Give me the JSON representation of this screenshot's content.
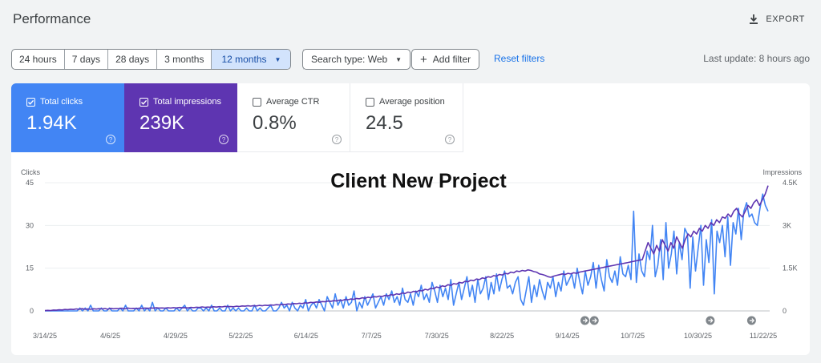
{
  "header": {
    "title": "Performance",
    "export_label": "EXPORT",
    "export_icon": "download-icon"
  },
  "toolbar": {
    "ranges": [
      "24 hours",
      "7 days",
      "28 days",
      "3 months",
      "12 months"
    ],
    "active_range": "12 months",
    "search_type": "Search type: Web",
    "add_filter": "Add filter",
    "reset_filters": "Reset filters",
    "last_update": "Last update: 8 hours ago"
  },
  "metrics": [
    {
      "label": "Total clicks",
      "value": "1.94K",
      "checked": true,
      "color": "#4285f4"
    },
    {
      "label": "Total impressions",
      "value": "239K",
      "checked": true,
      "color": "#5e35b1"
    },
    {
      "label": "Average CTR",
      "value": "0.8%",
      "checked": false
    },
    {
      "label": "Average position",
      "value": "24.5",
      "checked": false
    }
  ],
  "overlay_text": "Client New Project",
  "chart_data": {
    "type": "line",
    "title": "",
    "left_axis": {
      "label": "Clicks",
      "ticks": [
        "45",
        "30",
        "15",
        "0"
      ],
      "range": [
        0,
        45
      ]
    },
    "right_axis": {
      "label": "Impressions",
      "ticks": [
        "4.5K",
        "3K",
        "1.5K",
        "0"
      ],
      "range": [
        0,
        4500
      ]
    },
    "x_tick_labels": [
      "3/14/25",
      "4/6/25",
      "4/29/25",
      "5/22/25",
      "6/14/25",
      "7/7/25",
      "7/30/25",
      "8/22/25",
      "9/14/25",
      "10/7/25",
      "10/30/25",
      "11/22/25"
    ],
    "series": [
      {
        "name": "Clicks",
        "axis": "left",
        "color": "#4285f4",
        "values": [
          0,
          0,
          0,
          0,
          0,
          0,
          0,
          0,
          0,
          0,
          0,
          0,
          0,
          1,
          0,
          1,
          0,
          2,
          0,
          0,
          0,
          1,
          0,
          0,
          1,
          0,
          0,
          0,
          1,
          0,
          2,
          0,
          0,
          0,
          1,
          0,
          2,
          0,
          1,
          0,
          3,
          0,
          1,
          0,
          0,
          1,
          0,
          0,
          0,
          1,
          0,
          1,
          2,
          0,
          1,
          0,
          0,
          1,
          1,
          0,
          1,
          0,
          2,
          0,
          0,
          1,
          0,
          0,
          2,
          0,
          1,
          0,
          1,
          0,
          0,
          1,
          0,
          0,
          2,
          0,
          1,
          0,
          0,
          1,
          2,
          0,
          0,
          1,
          3,
          1,
          2,
          0,
          3,
          1,
          0,
          2,
          1,
          4,
          0,
          2,
          3,
          1,
          4,
          2,
          0,
          5,
          3,
          1,
          6,
          2,
          4,
          1,
          5,
          2,
          3,
          7,
          0,
          3,
          1,
          5,
          2,
          4,
          6,
          1,
          3,
          5,
          2,
          6,
          4,
          7,
          3,
          5,
          2,
          8,
          4,
          3,
          6,
          2,
          7,
          5,
          9,
          4,
          6,
          3,
          10,
          7,
          3,
          9,
          5,
          8,
          4,
          11,
          2,
          6,
          10,
          4,
          8,
          12,
          5,
          9,
          3,
          11,
          6,
          8,
          12,
          4,
          10,
          6,
          13,
          7,
          11,
          14,
          8,
          9,
          6,
          10,
          12,
          4,
          2,
          7,
          12,
          3,
          9,
          5,
          11,
          7,
          4,
          10,
          8,
          12,
          5,
          10,
          7,
          14,
          9,
          11,
          13,
          8,
          15,
          10,
          6,
          14,
          9,
          12,
          17,
          8,
          16,
          11,
          7,
          18,
          12,
          10,
          14,
          9,
          19,
          13,
          12,
          16,
          11,
          35,
          10,
          20,
          14,
          12,
          21,
          18,
          30,
          12,
          16,
          25,
          11,
          31,
          15,
          20,
          28,
          13,
          24,
          18,
          29,
          27,
          8,
          26,
          14,
          22,
          30,
          9,
          25,
          17,
          32,
          6,
          28,
          24,
          30,
          19,
          33,
          16,
          31,
          27,
          36,
          25,
          35,
          38,
          33,
          34,
          31,
          30,
          36,
          41,
          37,
          35
        ]
      },
      {
        "name": "Impressions",
        "axis": "right",
        "color": "#5e35b1",
        "values": [
          10,
          20,
          15,
          30,
          25,
          40,
          35,
          50,
          45,
          60,
          50,
          70,
          55,
          80,
          60,
          70,
          55,
          75,
          65,
          80,
          70,
          85,
          60,
          90,
          75,
          85,
          80,
          95,
          70,
          100,
          85,
          90,
          80,
          95,
          85,
          100,
          90,
          105,
          95,
          110,
          100,
          105,
          95,
          110,
          100,
          115,
          105,
          120,
          110,
          115,
          105,
          125,
          115,
          130,
          120,
          140,
          125,
          135,
          130,
          145,
          135,
          150,
          140,
          160,
          150,
          155,
          145,
          165,
          155,
          175,
          165,
          180,
          170,
          185,
          175,
          195,
          180,
          200,
          190,
          210,
          200,
          220,
          210,
          230,
          220,
          245,
          235,
          260,
          250,
          270,
          260,
          285,
          275,
          300,
          290,
          315,
          305,
          330,
          320,
          345,
          335,
          360,
          350,
          380,
          365,
          400,
          390,
          420,
          405,
          440,
          425,
          460,
          445,
          480,
          465,
          500,
          490,
          520,
          505,
          545,
          530,
          570,
          555,
          600,
          580,
          630,
          610,
          660,
          640,
          690,
          670,
          720,
          700,
          760,
          735,
          800,
          775,
          840,
          815,
          880,
          855,
          920,
          895,
          960,
          940,
          1000,
          980,
          1040,
          1020,
          1080,
          1060,
          1120,
          1100,
          1160,
          1140,
          1200,
          1180,
          1240,
          1220,
          1280,
          1260,
          1320,
          1300,
          1360,
          1340,
          1400,
          1380,
          1420,
          1400,
          1440,
          1420,
          1380,
          1360,
          1300,
          1280,
          1250,
          1200,
          1180,
          1220,
          1250,
          1270,
          1300,
          1280,
          1320,
          1300,
          1340,
          1320,
          1360,
          1380,
          1400,
          1420,
          1440,
          1460,
          1480,
          1500,
          1520,
          1540,
          1560,
          1580,
          1600,
          1620,
          1640,
          1660,
          1680,
          1700,
          1720,
          1740,
          1760,
          1780,
          1800,
          2100,
          2400,
          2200,
          2000,
          2300,
          2100,
          2500,
          2300,
          2100,
          2400,
          2200,
          2600,
          2400,
          2200,
          2500,
          2700,
          2600,
          2800,
          2700,
          2900,
          2800,
          3000,
          2900,
          3100,
          3000,
          3200,
          3100,
          3300,
          3250,
          3400,
          3300,
          3500,
          3600,
          3400,
          3300,
          3500,
          3700,
          3600,
          3800,
          3900,
          3700,
          3900,
          4100,
          4400
        ]
      }
    ],
    "annotation_markers": [
      {
        "label": "note-icon",
        "x_fraction": 0.745
      },
      {
        "label": "note-icon",
        "x_fraction": 0.758
      },
      {
        "label": "note-icon",
        "x_fraction": 0.918
      },
      {
        "label": "note-icon",
        "x_fraction": 0.975
      }
    ]
  }
}
